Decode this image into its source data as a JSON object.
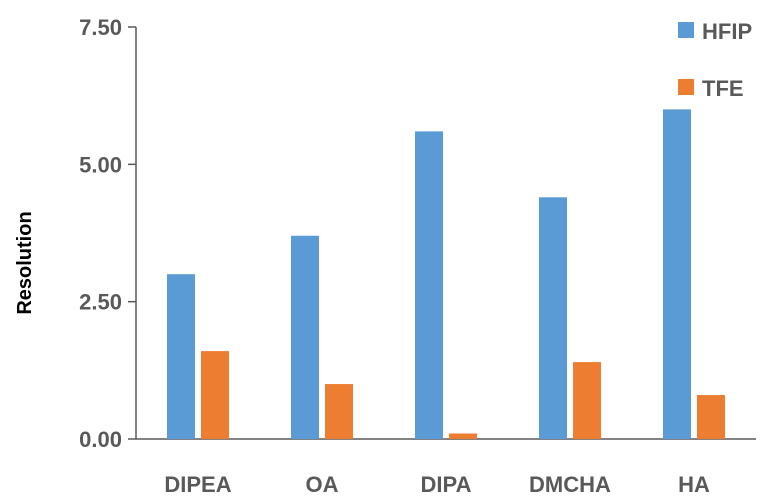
{
  "chart_data": {
    "type": "bar",
    "title": "",
    "xlabel": "",
    "ylabel": "Resolution",
    "ylim": [
      0,
      7.5
    ],
    "yticks": [
      "0.00",
      "2.50",
      "5.00",
      "7.50"
    ],
    "ytick_values": [
      0,
      2.5,
      5,
      7.5
    ],
    "categories": [
      "DIPEA",
      "OA",
      "DIPA",
      "DMCHA",
      "HA"
    ],
    "series": [
      {
        "name": "HFIP",
        "color": "#5b9bd5",
        "values": [
          3.0,
          3.7,
          5.6,
          4.4,
          6.0
        ]
      },
      {
        "name": "TFE",
        "color": "#ed7d31",
        "values": [
          1.6,
          1.0,
          0.1,
          1.4,
          0.8
        ]
      }
    ],
    "legend_position": "top-right",
    "grid": false
  }
}
